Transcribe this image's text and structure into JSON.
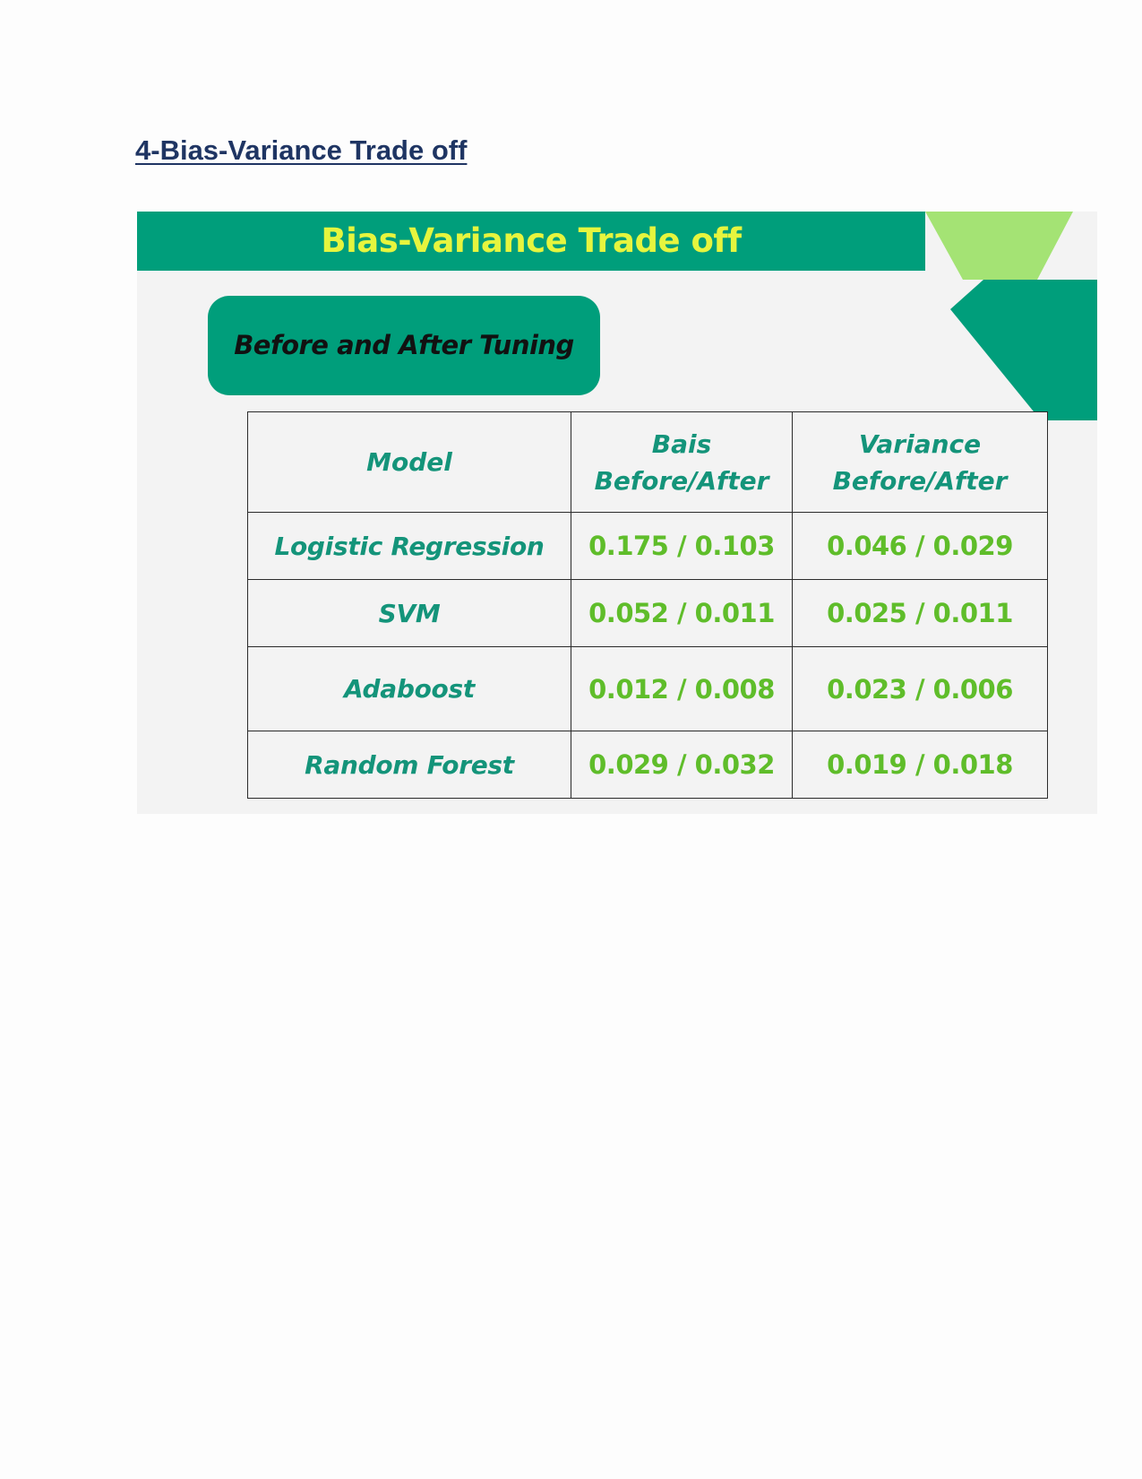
{
  "document": {
    "heading": "4-Bias-Variance Trade off"
  },
  "slide": {
    "title": "Bias-Variance Trade off",
    "subtitle": "Before and After Tuning",
    "colors": {
      "banner": "#009e7b",
      "title_text": "#e6f53e",
      "accent_light": "#a4e374",
      "accent_dark": "#009e7b",
      "header_text": "#14947a",
      "value_text": "#5fbd2a",
      "slide_background": "#f3f3f3"
    },
    "table": {
      "headers": {
        "model": "Model",
        "bias_line1": "Bais",
        "bias_line2": "Before/After",
        "variance_line1": "Variance",
        "variance_line2": "Before/After"
      },
      "rows": [
        {
          "model": "Logistic Regression",
          "bias": "0.175 / 0.103",
          "variance": "0.046 / 0.029"
        },
        {
          "model": "SVM",
          "bias": "0.052 / 0.011",
          "variance": "0.025 / 0.011"
        },
        {
          "model": "Adaboost",
          "bias": "0.012 / 0.008",
          "variance": "0.023 / 0.006"
        },
        {
          "model": "Random Forest",
          "bias": "0.029 / 0.032",
          "variance": "0.019 / 0.018"
        }
      ]
    }
  }
}
